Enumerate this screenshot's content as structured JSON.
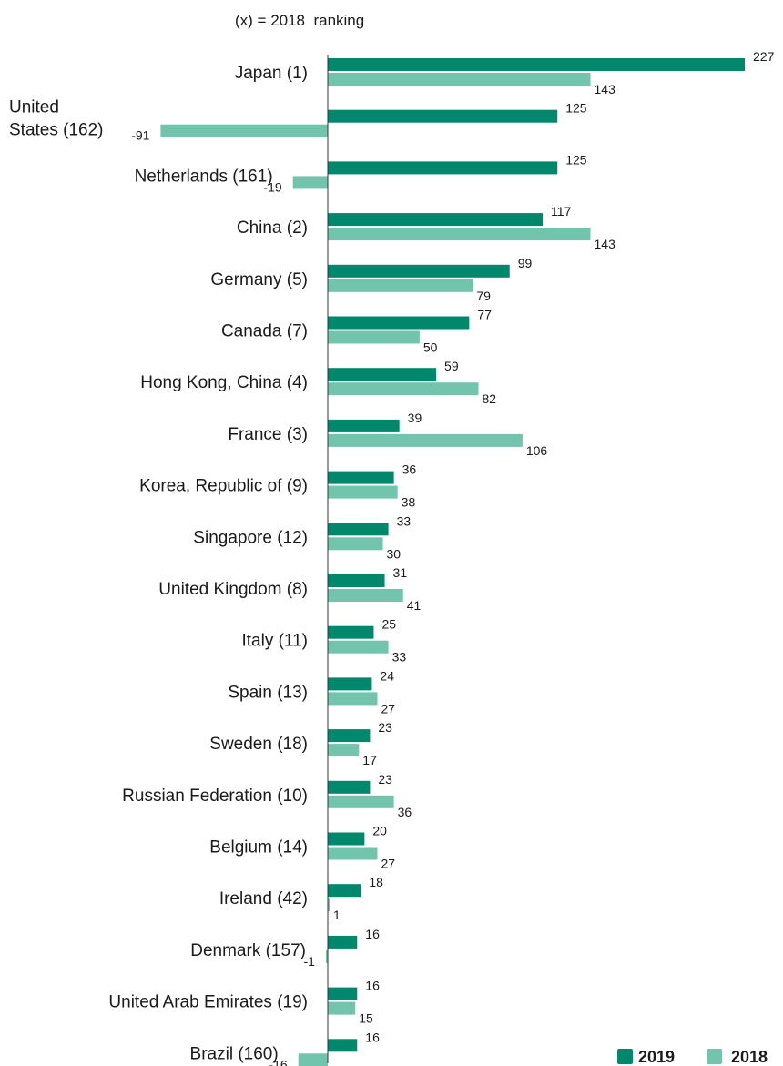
{
  "chart_data": {
    "type": "bar",
    "orientation": "horizontal",
    "note": "(x) = 2018  ranking",
    "categories": [
      "Japan (1)",
      "United States (162)",
      "Netherlands (161)",
      "China (2)",
      "Germany (5)",
      "Canada (7)",
      "Hong Kong, China (4)",
      "France (3)",
      "Korea, Republic of (9)",
      "Singapore (12)",
      "United Kingdom (8)",
      "Italy (11)",
      "Spain (13)",
      "Sweden (18)",
      "Russian Federation (10)",
      "Belgium (14)",
      "Ireland (42)",
      "Denmark (157)",
      "United Arab Emirates (19)",
      "Brazil (160)"
    ],
    "series": [
      {
        "name": "2019",
        "color": "#00876c",
        "values": [
          227,
          125,
          125,
          117,
          99,
          77,
          59,
          39,
          36,
          33,
          31,
          25,
          24,
          23,
          23,
          20,
          18,
          16,
          16,
          16
        ]
      },
      {
        "name": "2018",
        "color": "#72c4ac",
        "values": [
          143,
          -91,
          -19,
          143,
          79,
          50,
          82,
          106,
          38,
          30,
          41,
          33,
          27,
          17,
          36,
          27,
          1,
          -1,
          15,
          -16
        ]
      }
    ],
    "legend_position": "bottom-right",
    "grid": false
  }
}
